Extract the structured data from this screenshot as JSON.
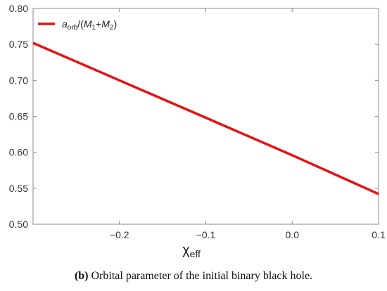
{
  "chart_data": {
    "type": "line",
    "title": "",
    "xlabel": {
      "main": "χ",
      "sub": "eff"
    },
    "ylabel": "",
    "xlim": [
      -0.3,
      0.1
    ],
    "ylim": [
      0.5,
      0.8
    ],
    "x_ticks": [
      -0.2,
      -0.1,
      0.0,
      0.1
    ],
    "x_tick_labels": [
      "−0.2",
      "−0.1",
      "0.0",
      "0.1"
    ],
    "y_ticks": [
      0.5,
      0.55,
      0.6,
      0.65,
      0.7,
      0.75,
      0.8
    ],
    "y_tick_labels": [
      "0.50",
      "0.55",
      "0.60",
      "0.65",
      "0.70",
      "0.75",
      "0.80"
    ],
    "grid": false,
    "legend": {
      "position": "top-left"
    },
    "series": [
      {
        "name": "a_orb/(M_1+M_2)",
        "color": "#e81010",
        "x": [
          -0.3,
          -0.25,
          -0.2,
          -0.15,
          -0.1,
          -0.05,
          0.0,
          0.05,
          0.1
        ],
        "y": [
          0.752,
          0.726,
          0.7,
          0.674,
          0.648,
          0.622,
          0.596,
          0.569,
          0.542
        ]
      }
    ]
  },
  "legend_label": {
    "a": "a",
    "a_sub": "orb",
    "mid": "/(",
    "m1": "M",
    "m1_sub": "1",
    "plus": "+",
    "m2": "M",
    "m2_sub": "2",
    "close": ")"
  },
  "caption": {
    "tag": "(b)",
    "text": " Orbital parameter of the initial binary black hole."
  }
}
